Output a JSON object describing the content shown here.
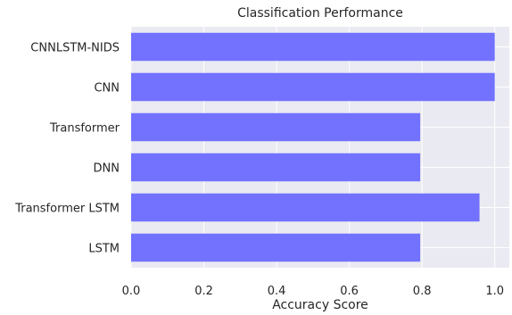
{
  "chart_data": {
    "type": "bar",
    "orientation": "horizontal",
    "title": "Classification Performance",
    "xlabel": "Accuracy Score",
    "ylabel": "",
    "categories": [
      "CNNLSTM-NIDS",
      "CNN",
      "Transformer",
      "DNN",
      "Transformer LSTM",
      "LSTM"
    ],
    "values": [
      1.0,
      1.0,
      0.795,
      0.795,
      0.958,
      0.795
    ],
    "xlim": [
      0,
      1.04
    ],
    "xticks": [
      0.0,
      0.2,
      0.4,
      0.6,
      0.8,
      1.0
    ],
    "xtick_labels": [
      "0.0",
      "0.2",
      "0.4",
      "0.6",
      "0.8",
      "1.0"
    ],
    "grid": true,
    "colors": {
      "bar": "#7272ff",
      "plot_background": "#eaeaf2",
      "grid": "#ffffff",
      "text": "#262626"
    }
  }
}
